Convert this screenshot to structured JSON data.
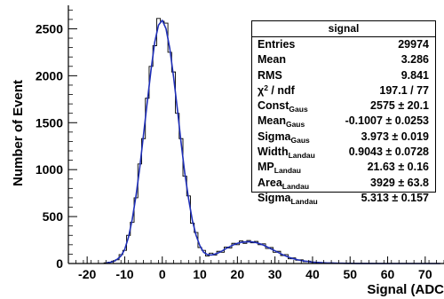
{
  "chart_data": {
    "type": "line",
    "xlabel": "Signal (ADC",
    "ylabel": "Number of Event",
    "xlim": [
      -25,
      75
    ],
    "ylim": [
      0,
      2750
    ],
    "x_ticks": [
      -20,
      -10,
      0,
      10,
      20,
      30,
      40,
      50,
      60,
      70
    ],
    "y_ticks": [
      0,
      500,
      1000,
      1500,
      2000,
      2500
    ],
    "grid": false,
    "series": [
      {
        "x": [
          -15,
          -14,
          -13,
          -12,
          -11,
          -10,
          -9,
          -8,
          -7,
          -6,
          -5,
          -4,
          -3,
          -2,
          -1,
          0,
          1,
          2,
          3,
          4,
          5,
          6,
          7,
          8,
          9,
          10,
          11,
          12,
          13,
          14,
          15,
          16,
          17,
          18,
          19,
          20,
          21,
          22,
          23,
          24,
          25,
          26,
          27,
          28,
          29,
          30,
          31,
          32,
          33,
          34,
          35,
          36,
          37,
          38,
          39,
          40,
          41,
          42,
          43,
          44,
          45,
          46,
          47,
          48,
          49,
          50,
          52,
          55,
          60,
          65,
          70,
          74
        ],
        "values": [
          5,
          12,
          22,
          45,
          80,
          150,
          280,
          470,
          720,
          1020,
          1370,
          1720,
          2060,
          2360,
          2540,
          2590,
          2500,
          2290,
          1990,
          1650,
          1290,
          960,
          690,
          460,
          300,
          190,
          120,
          95,
          90,
          100,
          115,
          135,
          160,
          180,
          200,
          215,
          225,
          230,
          232,
          230,
          222,
          210,
          195,
          175,
          155,
          135,
          115,
          95,
          78,
          62,
          50,
          40,
          32,
          25,
          20,
          15,
          12,
          10,
          8,
          6,
          5,
          4,
          3,
          3,
          2,
          2,
          1,
          1,
          0,
          0,
          0,
          0
        ]
      }
    ],
    "histogram": {
      "x": [
        -15,
        -14,
        -13,
        -12,
        -11,
        -10,
        -9,
        -8,
        -7,
        -6,
        -5,
        -4,
        -3,
        -2,
        -1,
        0,
        1,
        2,
        3,
        4,
        5,
        6,
        7,
        8,
        9,
        10,
        11,
        12,
        13,
        14,
        15,
        16,
        17,
        18,
        19,
        20,
        21,
        22,
        23,
        24,
        25,
        26,
        27,
        28,
        29,
        30,
        31,
        32,
        33,
        34,
        35,
        36,
        37,
        38,
        39,
        40,
        41,
        42,
        43,
        44,
        45,
        46,
        47,
        48,
        49,
        50
      ],
      "values": [
        8,
        15,
        25,
        40,
        95,
        140,
        300,
        440,
        700,
        1060,
        1330,
        1760,
        2100,
        2320,
        2610,
        2580,
        2560,
        2250,
        2040,
        1600,
        1330,
        930,
        720,
        430,
        330,
        170,
        140,
        80,
        110,
        90,
        130,
        120,
        175,
        165,
        215,
        200,
        240,
        215,
        245,
        220,
        235,
        200,
        210,
        160,
        170,
        120,
        130,
        85,
        95,
        50,
        60,
        35,
        40,
        20,
        25,
        12,
        15,
        8,
        10,
        5,
        6,
        3,
        4,
        2,
        3,
        1
      ]
    },
    "stats_box": {
      "title": "signal",
      "rows": [
        {
          "label": "Entries",
          "sub": "",
          "value": "29974"
        },
        {
          "label": "Mean",
          "sub": "",
          "value": "3.286"
        },
        {
          "label": "RMS",
          "sub": "",
          "value": "9.841"
        },
        {
          "label": "χ",
          "sup": "2",
          "label_tail": " / ndf",
          "sub": "",
          "value": "197.1 / 77"
        },
        {
          "label": "Const",
          "sub": "Gaus",
          "value": "2575 ± 20.1"
        },
        {
          "label": "Mean",
          "sub": "Gaus",
          "value": "-0.1007 ± 0.0253"
        },
        {
          "label": "Sigma",
          "sub": "Gaus",
          "value": "3.973 ± 0.019"
        },
        {
          "label": "Width",
          "sub": "Landau",
          "value": "0.9043 ± 0.0728"
        },
        {
          "label": "MP",
          "sub": "Landau",
          "value": "21.63 ± 0.16"
        },
        {
          "label": "Area",
          "sub": "Landau",
          "value": "3929 ± 63.8"
        },
        {
          "label": "Sigma",
          "sub": "Landau",
          "value": "5.313 ± 0.157"
        }
      ]
    },
    "colors": {
      "fit": "#1f2fb8",
      "histogram": "#000000",
      "axes": "#000000"
    }
  }
}
